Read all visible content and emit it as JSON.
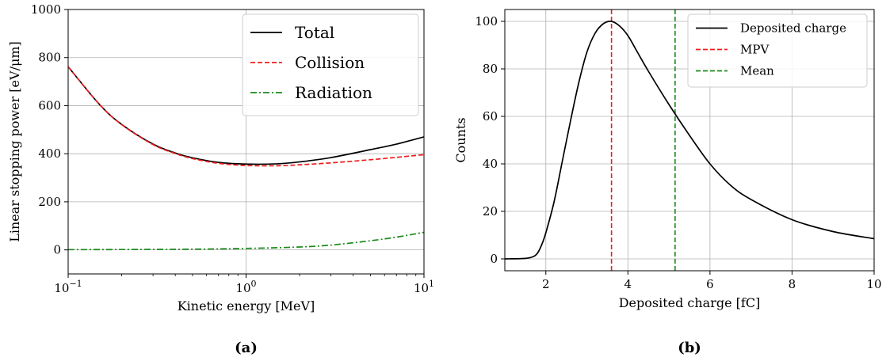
{
  "chart_data": [
    {
      "type": "line",
      "caption": "(a)",
      "xlabel": "Kinetic energy [MeV]",
      "ylabel": "Linear stopping power [eV/μm]",
      "x_scale": "log",
      "xlim": [
        0.1,
        10
      ],
      "ylim": [
        -100,
        1000
      ],
      "x_tick_labels": [
        {
          "base": "10",
          "exp": "−1",
          "value": 0.1
        },
        {
          "base": "10",
          "exp": "0",
          "value": 1
        },
        {
          "base": "10",
          "exp": "1",
          "value": 10
        }
      ],
      "y_ticks": [
        0,
        200,
        400,
        600,
        800,
        1000
      ],
      "grid": true,
      "legend_position": "top-right",
      "series": [
        {
          "name": "Total",
          "color": "#000000",
          "style": "solid",
          "x": [
            0.1,
            0.15,
            0.2,
            0.3,
            0.4,
            0.5,
            0.7,
            1.0,
            1.5,
            2.0,
            3.0,
            5.0,
            7.0,
            10.0
          ],
          "y": [
            762,
            605,
            522,
            440,
            403,
            383,
            364,
            357,
            358,
            366,
            384,
            417,
            440,
            470
          ]
        },
        {
          "name": "Collision",
          "color": "#ee1c1c",
          "style": "dashed",
          "x": [
            0.1,
            0.15,
            0.2,
            0.3,
            0.4,
            0.5,
            0.7,
            1.0,
            1.5,
            2.0,
            3.0,
            5.0,
            7.0,
            10.0
          ],
          "y": [
            762,
            605,
            521,
            438,
            401,
            380,
            360,
            351,
            350,
            354,
            362,
            375,
            385,
            396
          ]
        },
        {
          "name": "Radiation",
          "color": "#1a8a1a",
          "style": "dashdot",
          "x": [
            0.1,
            0.2,
            0.5,
            1.0,
            2.0,
            3.0,
            5.0,
            7.0,
            10.0
          ],
          "y": [
            1,
            1.5,
            3,
            6,
            12,
            20,
            38,
            53,
            73
          ]
        }
      ]
    },
    {
      "type": "line",
      "caption": "(b)",
      "xlabel": "Deposited charge [fC]",
      "ylabel": "Counts",
      "xlim": [
        1,
        10
      ],
      "ylim": [
        -5,
        105
      ],
      "x_ticks": [
        2,
        4,
        6,
        8,
        10
      ],
      "y_ticks": [
        0,
        20,
        40,
        60,
        80,
        100
      ],
      "grid": true,
      "legend_position": "top-right",
      "series": [
        {
          "name": "Deposited charge",
          "color": "#000000",
          "style": "solid",
          "x": [
            1.0,
            1.5,
            1.7,
            1.8,
            1.9,
            2.0,
            2.2,
            2.4,
            2.6,
            2.8,
            3.0,
            3.2,
            3.4,
            3.6,
            3.8,
            4.0,
            4.2,
            4.5,
            5.0,
            5.5,
            6.0,
            6.5,
            7.0,
            8.0,
            9.0,
            10.0
          ],
          "y": [
            0,
            0.2,
            1,
            2.5,
            6,
            11,
            24,
            41,
            58,
            74,
            87,
            95,
            99,
            100,
            98,
            94,
            88,
            79,
            65,
            52,
            40,
            31,
            25,
            16.5,
            11.5,
            8.5
          ]
        }
      ],
      "vlines": [
        {
          "name": "MPV",
          "color": "#ee1c1c",
          "style": "dashed",
          "x": 3.6
        },
        {
          "name": "Mean",
          "color": "#1a8a1a",
          "style": "dashed",
          "x": 5.15
        }
      ]
    }
  ]
}
